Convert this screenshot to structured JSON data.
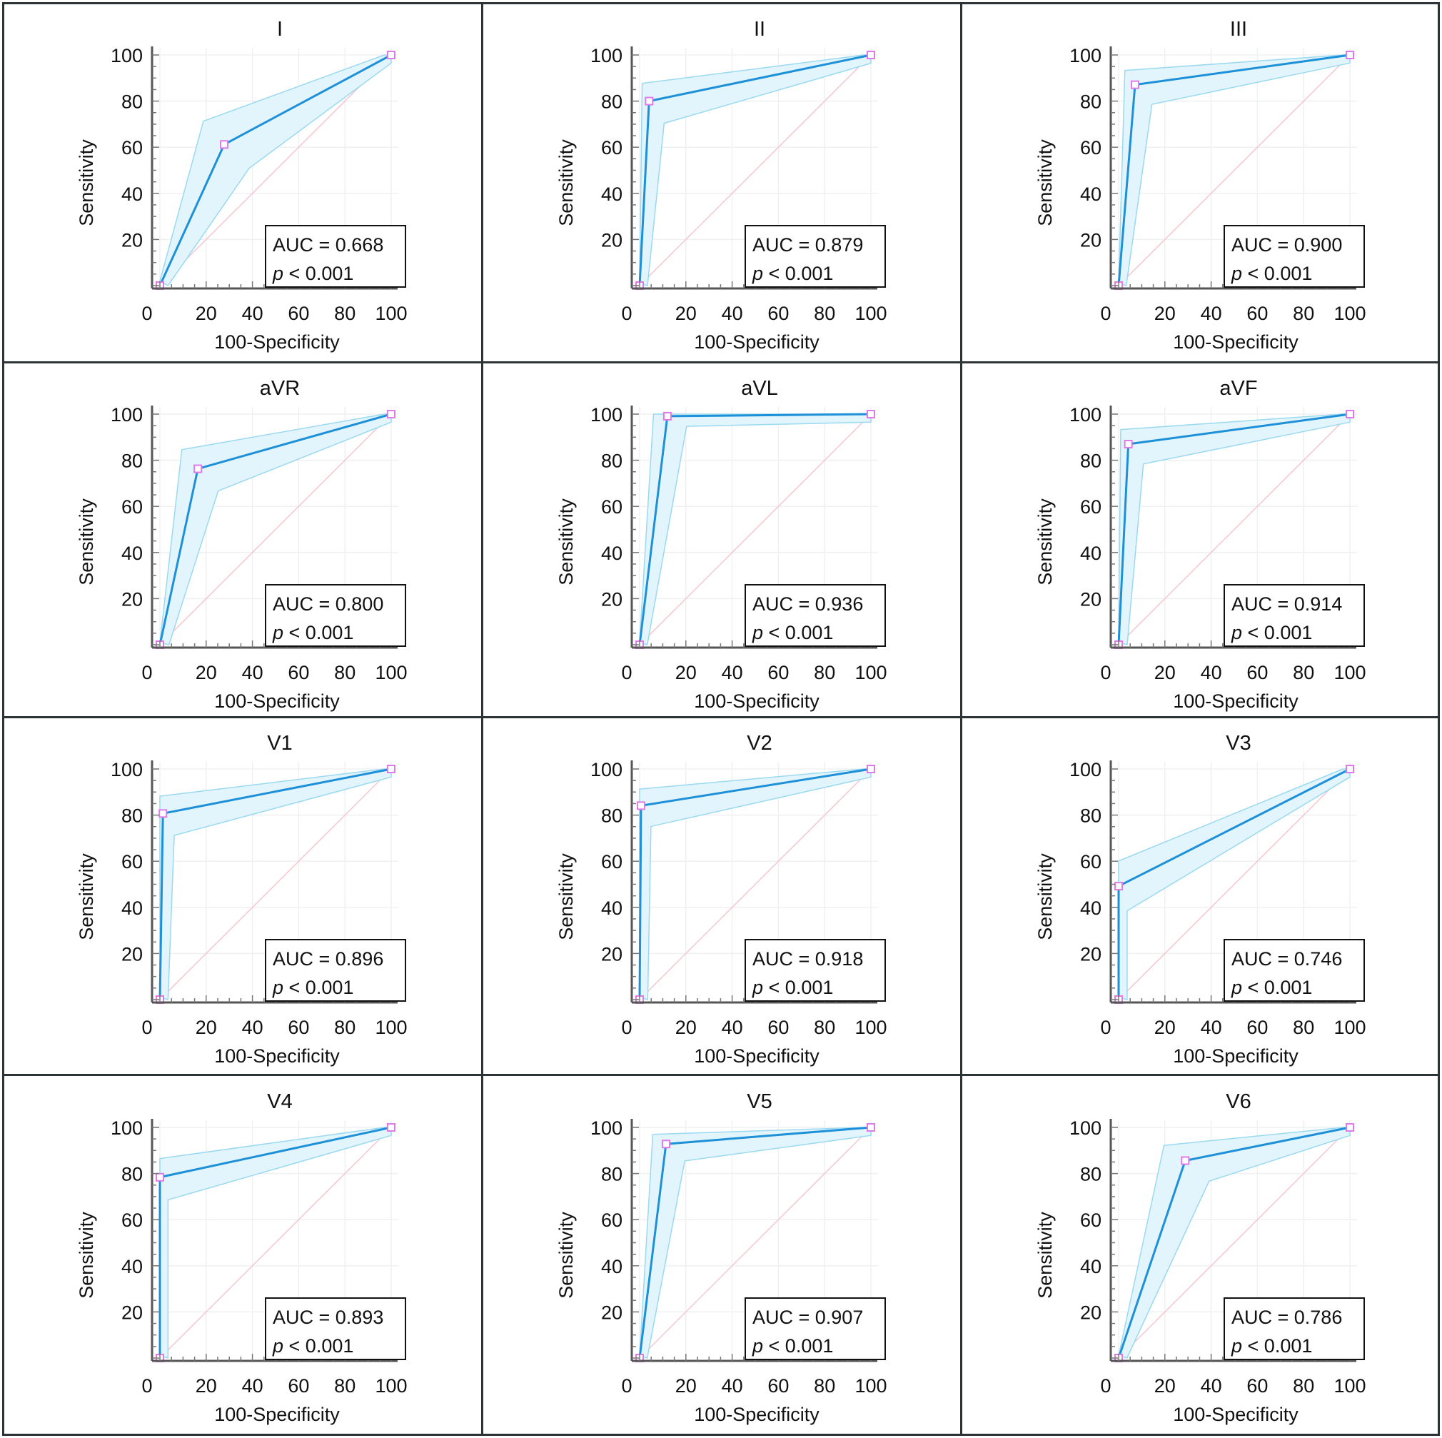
{
  "chart_data": [
    {
      "type": "line",
      "title": "I",
      "xlabel": "100-Specificity",
      "ylabel": "Sensitivity",
      "xlim": [
        0,
        100
      ],
      "ylim": [
        0,
        100
      ],
      "xticks": [
        "0",
        "20",
        "40",
        "60",
        "80",
        "100"
      ],
      "yticks": [
        "20",
        "40",
        "60",
        "80",
        "100"
      ],
      "roc": [
        [
          0,
          0
        ],
        [
          27.8,
          61.2
        ],
        [
          100,
          100
        ]
      ],
      "ci_upper": [
        [
          0,
          2
        ],
        [
          18.8,
          71.3
        ],
        [
          97,
          100
        ],
        [
          100,
          100
        ]
      ],
      "ci_lower": [
        [
          3.5,
          0
        ],
        [
          38.6,
          50.9
        ],
        [
          100,
          96.5
        ]
      ],
      "auc": "AUC = 0.668",
      "p_label": "p",
      "p_value": "< 0.001"
    },
    {
      "type": "line",
      "title": "II",
      "xlabel": "100-Specificity",
      "ylabel": "Sensitivity",
      "xlim": [
        0,
        100
      ],
      "ylim": [
        0,
        100
      ],
      "xticks": [
        "0",
        "20",
        "40",
        "60",
        "80",
        "100"
      ],
      "yticks": [
        "20",
        "40",
        "60",
        "80",
        "100"
      ],
      "roc": [
        [
          0,
          0
        ],
        [
          4.1,
          80
        ],
        [
          100,
          100
        ]
      ],
      "ci_upper": [
        [
          0,
          1
        ],
        [
          1.1,
          87.7
        ],
        [
          97,
          100
        ],
        [
          100,
          100
        ]
      ],
      "ci_lower": [
        [
          3.4,
          0
        ],
        [
          10.6,
          70.4
        ],
        [
          100,
          96.4
        ]
      ],
      "auc": "AUC = 0.879",
      "p_label": "p",
      "p_value": "< 0.001"
    },
    {
      "type": "line",
      "title": "III",
      "xlabel": "100-Specificity",
      "ylabel": "Sensitivity",
      "xlim": [
        0,
        100
      ],
      "ylim": [
        0,
        100
      ],
      "xticks": [
        "0",
        "20",
        "40",
        "60",
        "80",
        "100"
      ],
      "yticks": [
        "20",
        "40",
        "60",
        "80",
        "100"
      ],
      "roc": [
        [
          0,
          0
        ],
        [
          7.1,
          87.1
        ],
        [
          100,
          100
        ]
      ],
      "ci_upper": [
        [
          0,
          1
        ],
        [
          2.7,
          93.3
        ],
        [
          97,
          100
        ],
        [
          100,
          100
        ]
      ],
      "ci_lower": [
        [
          3.3,
          0
        ],
        [
          14.4,
          78.6
        ],
        [
          100,
          96.5
        ]
      ],
      "auc": "AUC = 0.900",
      "p_label": "p",
      "p_value": "< 0.001"
    },
    {
      "type": "line",
      "title": "aVR",
      "xlabel": "100-Specificity",
      "ylabel": "Sensitivity",
      "xlim": [
        0,
        100
      ],
      "ylim": [
        0,
        100
      ],
      "xticks": [
        "0",
        "20",
        "40",
        "60",
        "80",
        "100"
      ],
      "yticks": [
        "20",
        "40",
        "60",
        "80",
        "100"
      ],
      "roc": [
        [
          0,
          0
        ],
        [
          16.4,
          76.3
        ],
        [
          100,
          100
        ]
      ],
      "ci_upper": [
        [
          0,
          1
        ],
        [
          9.5,
          84.6
        ],
        [
          97,
          100
        ],
        [
          100,
          100
        ]
      ],
      "ci_lower": [
        [
          3.9,
          0
        ],
        [
          25.2,
          66.7
        ],
        [
          100,
          96.5
        ]
      ],
      "auc": "AUC = 0.800",
      "p_label": "p",
      "p_value": "< 0.001"
    },
    {
      "type": "line",
      "title": "aVL",
      "xlabel": "100-Specificity",
      "ylabel": "Sensitivity",
      "xlim": [
        0,
        100
      ],
      "ylim": [
        0,
        100
      ],
      "xticks": [
        "0",
        "20",
        "40",
        "60",
        "80",
        "100"
      ],
      "yticks": [
        "20",
        "40",
        "60",
        "80",
        "100"
      ],
      "roc": [
        [
          0,
          0
        ],
        [
          12,
          99.1
        ],
        [
          100,
          100
        ]
      ],
      "ci_upper": [
        [
          0,
          1
        ],
        [
          6,
          100
        ],
        [
          100,
          100
        ]
      ],
      "ci_lower": [
        [
          3.3,
          0
        ],
        [
          20.3,
          94.7
        ],
        [
          100,
          96.5
        ]
      ],
      "auc": "AUC = 0.936",
      "p_label": "p",
      "p_value": "< 0.001"
    },
    {
      "type": "line",
      "title": "aVF",
      "xlabel": "100-Specificity",
      "ylabel": "Sensitivity",
      "xlim": [
        0,
        100
      ],
      "ylim": [
        0,
        100
      ],
      "xticks": [
        "0",
        "20",
        "40",
        "60",
        "80",
        "100"
      ],
      "yticks": [
        "20",
        "40",
        "60",
        "80",
        "100"
      ],
      "roc": [
        [
          0,
          0
        ],
        [
          4.2,
          87
        ],
        [
          100,
          100
        ]
      ],
      "ci_upper": [
        [
          0,
          1
        ],
        [
          0.9,
          93.3
        ],
        [
          97,
          100
        ],
        [
          100,
          100
        ]
      ],
      "ci_lower": [
        [
          3.7,
          0
        ],
        [
          10.7,
          78.4
        ],
        [
          100,
          96.5
        ]
      ],
      "auc": "AUC = 0.914",
      "p_label": "p",
      "p_value": "< 0.001"
    },
    {
      "type": "line",
      "title": "V1",
      "xlabel": "100-Specificity",
      "ylabel": "Sensitivity",
      "xlim": [
        0,
        100
      ],
      "ylim": [
        0,
        100
      ],
      "xticks": [
        "0",
        "20",
        "40",
        "60",
        "80",
        "100"
      ],
      "yticks": [
        "20",
        "40",
        "60",
        "80",
        "100"
      ],
      "roc": [
        [
          0,
          0
        ],
        [
          1.3,
          80.7
        ],
        [
          100,
          100
        ]
      ],
      "ci_upper": [
        [
          0,
          1
        ],
        [
          0,
          88.2
        ],
        [
          97,
          100
        ],
        [
          100,
          100
        ]
      ],
      "ci_lower": [
        [
          3.5,
          0
        ],
        [
          6.2,
          71.2
        ],
        [
          100,
          96.5
        ]
      ],
      "auc": "AUC = 0.896",
      "p_label": "p",
      "p_value": "< 0.001"
    },
    {
      "type": "line",
      "title": "V2",
      "xlabel": "100-Specificity",
      "ylabel": "Sensitivity",
      "xlim": [
        0,
        100
      ],
      "ylim": [
        0,
        100
      ],
      "xticks": [
        "0",
        "20",
        "40",
        "60",
        "80",
        "100"
      ],
      "yticks": [
        "20",
        "40",
        "60",
        "80",
        "100"
      ],
      "roc": [
        [
          0,
          0
        ],
        [
          0.6,
          84.1
        ],
        [
          100,
          100
        ]
      ],
      "ci_upper": [
        [
          0,
          1
        ],
        [
          0,
          91.3
        ],
        [
          97,
          100
        ],
        [
          100,
          100
        ]
      ],
      "ci_lower": [
        [
          3.5,
          0
        ],
        [
          4.9,
          75.1
        ],
        [
          100,
          96.5
        ]
      ],
      "auc": "AUC = 0.918",
      "p_label": "p",
      "p_value": "< 0.001"
    },
    {
      "type": "line",
      "title": "V3",
      "xlabel": "100-Specificity",
      "ylabel": "Sensitivity",
      "xlim": [
        0,
        100
      ],
      "ylim": [
        0,
        100
      ],
      "xticks": [
        "0",
        "20",
        "40",
        "60",
        "80",
        "100"
      ],
      "yticks": [
        "20",
        "40",
        "60",
        "80",
        "100"
      ],
      "roc": [
        [
          0,
          0
        ],
        [
          0,
          49.2
        ],
        [
          100,
          100
        ]
      ],
      "ci_upper": [
        [
          0,
          1
        ],
        [
          0,
          60.1
        ],
        [
          97,
          100
        ],
        [
          100,
          100
        ]
      ],
      "ci_lower": [
        [
          3.7,
          0
        ],
        [
          3.7,
          38.5
        ],
        [
          100,
          96.5
        ]
      ],
      "auc": "AUC = 0.746",
      "p_label": "p",
      "p_value": "< 0.001"
    },
    {
      "type": "line",
      "title": "V4",
      "xlabel": "100-Specificity",
      "ylabel": "Sensitivity",
      "xlim": [
        0,
        100
      ],
      "ylim": [
        0,
        100
      ],
      "xticks": [
        "0",
        "20",
        "40",
        "60",
        "80",
        "100"
      ],
      "yticks": [
        "20",
        "40",
        "60",
        "80",
        "100"
      ],
      "roc": [
        [
          0,
          0
        ],
        [
          0,
          78.4
        ],
        [
          100,
          100
        ]
      ],
      "ci_upper": [
        [
          0,
          1
        ],
        [
          0,
          86.5
        ],
        [
          97,
          100
        ],
        [
          100,
          100
        ]
      ],
      "ci_lower": [
        [
          3.5,
          0
        ],
        [
          3.5,
          68.6
        ],
        [
          100,
          96.5
        ]
      ],
      "auc": "AUC = 0.893",
      "p_label": "p",
      "p_value": "< 0.001"
    },
    {
      "type": "line",
      "title": "V5",
      "xlabel": "100-Specificity",
      "ylabel": "Sensitivity",
      "xlim": [
        0,
        100
      ],
      "ylim": [
        0,
        100
      ],
      "xticks": [
        "0",
        "20",
        "40",
        "60",
        "80",
        "100"
      ],
      "yticks": [
        "20",
        "40",
        "60",
        "80",
        "100"
      ],
      "roc": [
        [
          0,
          0
        ],
        [
          11.4,
          92.8
        ],
        [
          100,
          100
        ]
      ],
      "ci_upper": [
        [
          0,
          1
        ],
        [
          5.7,
          97
        ],
        [
          97,
          100
        ],
        [
          100,
          100
        ]
      ],
      "ci_lower": [
        [
          3.3,
          0
        ],
        [
          19.5,
          85.5
        ],
        [
          100,
          96.5
        ]
      ],
      "auc": "AUC = 0.907",
      "p_label": "p",
      "p_value": "< 0.001"
    },
    {
      "type": "line",
      "title": "V6",
      "xlabel": "100-Specificity",
      "ylabel": "Sensitivity",
      "xlim": [
        0,
        100
      ],
      "ylim": [
        0,
        100
      ],
      "xticks": [
        "0",
        "20",
        "40",
        "60",
        "80",
        "100"
      ],
      "yticks": [
        "20",
        "40",
        "60",
        "80",
        "100"
      ],
      "roc": [
        [
          0,
          0
        ],
        [
          28.8,
          85.6
        ],
        [
          100,
          100
        ]
      ],
      "ci_upper": [
        [
          0,
          1
        ],
        [
          19.6,
          92.2
        ],
        [
          97,
          100
        ],
        [
          100,
          100
        ]
      ],
      "ci_lower": [
        [
          3.6,
          0
        ],
        [
          39.1,
          76.7
        ],
        [
          100,
          96.5
        ]
      ],
      "auc": "AUC = 0.786",
      "p_label": "p",
      "p_value": "< 0.001"
    }
  ],
  "colors": {
    "roc_line": "#1e90d8",
    "ci_fill": "#e3f5fc",
    "ci_edge": "#9ad9f0",
    "marker": "#e07ae8",
    "reference": "#f6c6d0",
    "axis": "#555555",
    "grid": "#eef0f2"
  }
}
